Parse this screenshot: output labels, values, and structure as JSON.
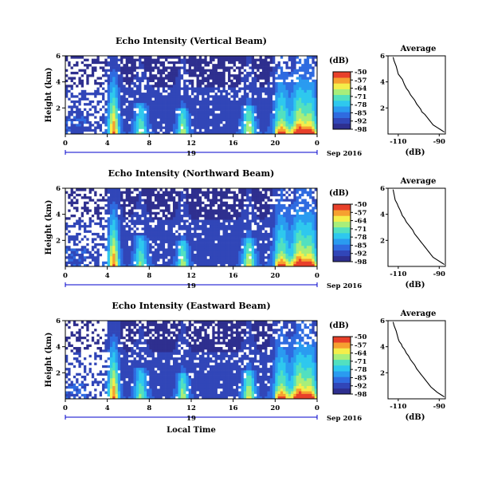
{
  "chart_data": [
    {
      "type": "heatmap",
      "title": "Echo Intensity (Vertical Beam)",
      "ylabel": "Height (km)",
      "ylim": [
        0,
        6
      ],
      "yticks": [
        2,
        4,
        6
      ],
      "xlim": [
        0,
        24
      ],
      "xticks": [
        "0",
        "4",
        "8",
        "12",
        "16",
        "20",
        "0"
      ],
      "date_day": "19",
      "date_label": "Sep 2016",
      "colorbar": {
        "unit": "(dB)",
        "range": [
          -98,
          -50
        ],
        "ticks": [
          "-50",
          "-57",
          "-64",
          "-71",
          "-78",
          "-85",
          "-92",
          "-98"
        ]
      },
      "average": {
        "title": "Average",
        "xlabel": "(dB)",
        "xticks": [
          "-110",
          "-90"
        ],
        "yticks": [
          2,
          4,
          6
        ],
        "xlim": [
          -115,
          -87
        ],
        "ylim": [
          0,
          6
        ],
        "x": [
          -112.5,
          -112,
          -111,
          -110.5,
          -110,
          -109,
          -108,
          -107.5,
          -107,
          -106,
          -105,
          -104,
          -103,
          -102,
          -101,
          -100,
          -99,
          -98.5,
          -97,
          -96,
          -95,
          -94,
          -93,
          -91,
          -89,
          -87.5
        ],
        "y": [
          5.9,
          5.6,
          5.2,
          4.9,
          4.6,
          4.4,
          4.2,
          4.0,
          3.8,
          3.5,
          3.3,
          3.0,
          2.8,
          2.6,
          2.3,
          2.1,
          1.9,
          1.7,
          1.5,
          1.3,
          1.1,
          0.9,
          0.7,
          0.5,
          0.3,
          0.15
        ]
      },
      "grid": false,
      "legend": "right"
    },
    {
      "type": "heatmap",
      "title": "Echo Intensity (Northward Beam)",
      "ylabel": "Height (km)",
      "ylim": [
        0,
        6
      ],
      "yticks": [
        2,
        4,
        6
      ],
      "xlim": [
        0,
        24
      ],
      "xticks": [
        "0",
        "4",
        "8",
        "12",
        "16",
        "20",
        "0"
      ],
      "date_day": "19",
      "date_label": "Sep 2016",
      "colorbar": {
        "unit": "(dB)",
        "range": [
          -98,
          -50
        ],
        "ticks": [
          "-50",
          "-57",
          "-64",
          "-71",
          "-78",
          "-85",
          "-92",
          "-98"
        ]
      },
      "average": {
        "title": "Average",
        "xlabel": "(dB)",
        "xticks": [
          "-110",
          "-90"
        ],
        "yticks": [
          2,
          4,
          6
        ],
        "xlim": [
          -115,
          -87
        ],
        "ylim": [
          0,
          6
        ],
        "x": [
          -112.5,
          -112,
          -111.5,
          -110.5,
          -110,
          -109,
          -108.5,
          -108,
          -107,
          -106,
          -105,
          -104,
          -103,
          -102,
          -101,
          -100,
          -99,
          -98,
          -97,
          -96,
          -95,
          -94,
          -93,
          -91,
          -89,
          -87.5
        ],
        "y": [
          5.9,
          5.5,
          5.1,
          4.8,
          4.6,
          4.3,
          4.1,
          3.9,
          3.7,
          3.4,
          3.2,
          3.0,
          2.8,
          2.5,
          2.3,
          2.1,
          1.9,
          1.7,
          1.5,
          1.3,
          1.1,
          0.9,
          0.7,
          0.5,
          0.3,
          0.15
        ]
      },
      "grid": false,
      "legend": "right"
    },
    {
      "type": "heatmap",
      "title": "Echo Intensity (Eastward Beam)",
      "ylabel": "Height (km)",
      "ylim": [
        0,
        6
      ],
      "yticks": [
        2,
        4,
        6
      ],
      "xlim": [
        0,
        24
      ],
      "xticks": [
        "0",
        "4",
        "8",
        "12",
        "16",
        "20",
        "0"
      ],
      "date_day": "19",
      "date_label": "Sep 2016",
      "xlabel": "Local Time",
      "colorbar": {
        "unit": "(dB)",
        "range": [
          -98,
          -50
        ],
        "ticks": [
          "-50",
          "-57",
          "-64",
          "-71",
          "-78",
          "-85",
          "-92",
          "-98"
        ]
      },
      "average": {
        "title": "Average",
        "xlabel": "(dB)",
        "xticks": [
          "-110",
          "-90"
        ],
        "yticks": [
          2,
          4,
          6
        ],
        "xlim": [
          -115,
          -87
        ],
        "ylim": [
          0,
          6
        ],
        "x": [
          -112.5,
          -112,
          -111,
          -110.5,
          -110,
          -109.5,
          -108.5,
          -108,
          -107,
          -106,
          -105,
          -104,
          -103,
          -102,
          -101,
          -100,
          -99,
          -98,
          -97,
          -96,
          -95,
          -94,
          -92.5,
          -91,
          -89,
          -87.5
        ],
        "y": [
          5.9,
          5.6,
          5.2,
          4.9,
          4.6,
          4.4,
          4.2,
          4.0,
          3.8,
          3.5,
          3.3,
          3.0,
          2.8,
          2.6,
          2.3,
          2.1,
          1.9,
          1.7,
          1.5,
          1.3,
          1.1,
          0.9,
          0.7,
          0.5,
          0.3,
          0.15
        ]
      },
      "grid": false,
      "legend": "right"
    }
  ],
  "colors": {
    "colormap": [
      "#2e2f8f",
      "#3146b8",
      "#2f6be0",
      "#2a9bf0",
      "#2ec8ee",
      "#52e0c0",
      "#a8ee7a",
      "#f4ee4a",
      "#f6a030",
      "#e8402a"
    ],
    "missing": "#ffffff",
    "axis": "#000000"
  }
}
